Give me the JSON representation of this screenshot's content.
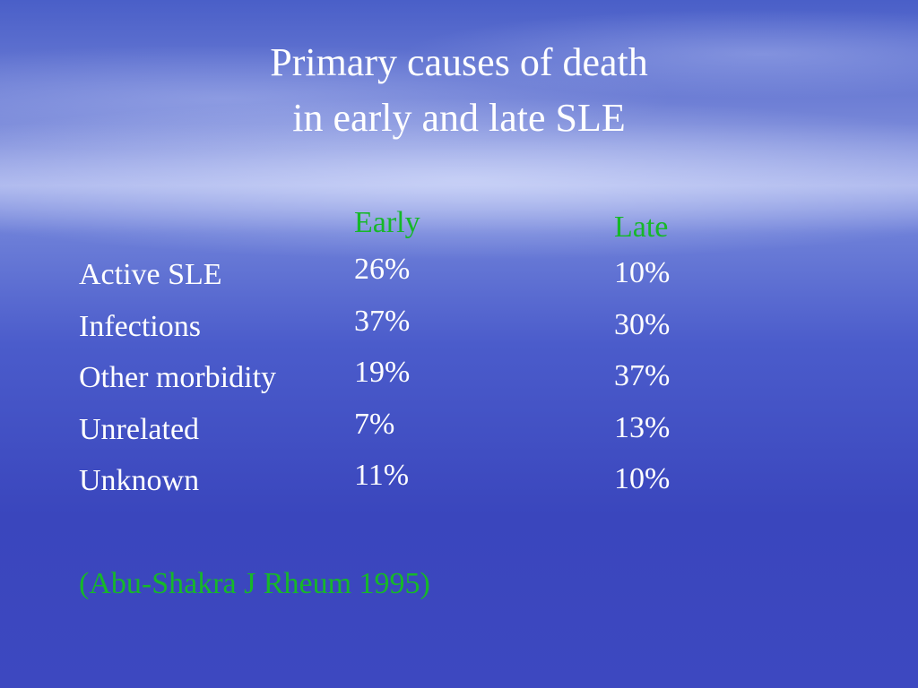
{
  "title": [
    "Primary causes of death",
    "in early and late SLE"
  ],
  "table": {
    "headers": [
      "Early",
      "Late"
    ],
    "rows": [
      [
        "Active SLE",
        "26%",
        "10%"
      ],
      [
        "Infections",
        "37%",
        "30%"
      ],
      [
        "Other morbidity",
        "19%",
        "37%"
      ],
      [
        "Unrelated",
        "7%",
        "13%"
      ],
      [
        "Unknown",
        "11%",
        "10%"
      ]
    ]
  },
  "citation": "(Abu-Shakra J Rheum 1995)"
}
